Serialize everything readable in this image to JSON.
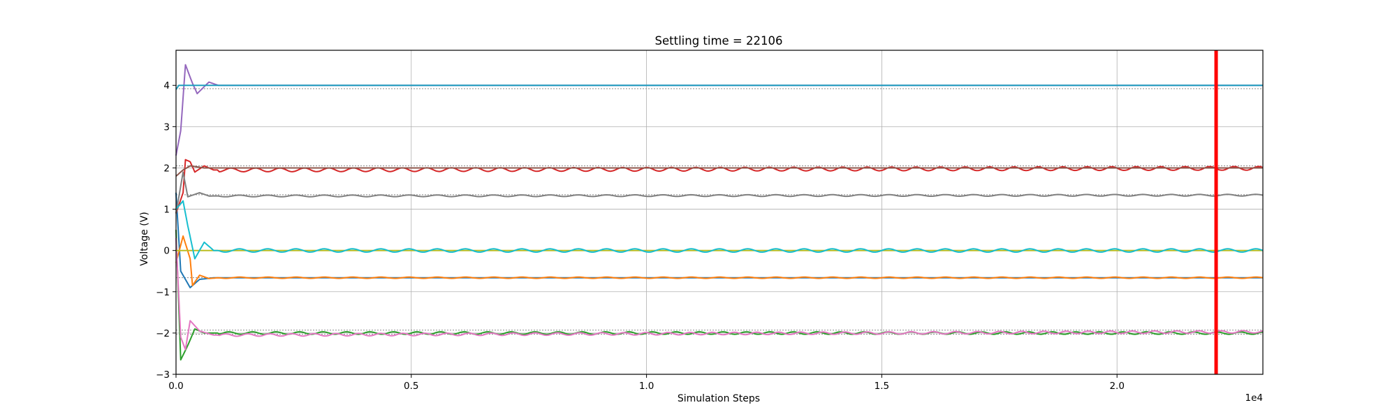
{
  "chart_data": {
    "type": "line",
    "title": "Settling time = 22106",
    "xlabel": "Simulation Steps",
    "ylabel": "Voltage (V)",
    "x_offset_label": "1e4",
    "xlim": [
      0,
      23100
    ],
    "ylim": [
      -3,
      4.85
    ],
    "x_ticks": [
      0,
      5000,
      10000,
      15000,
      20000
    ],
    "x_tick_labels": [
      "0.0",
      "0.5",
      "1.0",
      "1.5",
      "2.0"
    ],
    "y_ticks": [
      -3,
      -2,
      -1,
      0,
      1,
      2,
      3,
      4
    ],
    "y_tick_labels": [
      "−3",
      "−2",
      "−1",
      "0",
      "1",
      "2",
      "3",
      "4"
    ],
    "grid": true,
    "settling_marker": {
      "x": 22106,
      "color": "#ff0000"
    },
    "target_lines": [
      {
        "y": 3.92,
        "color": "#888888",
        "style": "dotted"
      },
      {
        "y": 2.05,
        "color": "#888888",
        "style": "dotted"
      },
      {
        "y": 1.35,
        "color": "#888888",
        "style": "dotted"
      },
      {
        "y": 0.0,
        "color": "#888888",
        "style": "dotted"
      },
      {
        "y": -0.66,
        "color": "#888888",
        "style": "dotted"
      },
      {
        "y": -1.93,
        "color": "#888888",
        "style": "dotted"
      },
      {
        "y": -2.03,
        "color": "#888888",
        "style": "dotted"
      }
    ],
    "series": [
      {
        "color": "#1f77b4",
        "points": [
          [
            0,
            1.4
          ],
          [
            100,
            -0.5
          ],
          [
            300,
            -0.9
          ],
          [
            500,
            -0.7
          ],
          [
            800,
            -0.66
          ],
          [
            23100,
            -0.66
          ]
        ],
        "osc_amp": 0.0,
        "osc_period": 1000
      },
      {
        "color": "#ff7f0e",
        "points": [
          [
            0,
            -0.3
          ],
          [
            150,
            0.35
          ],
          [
            300,
            -0.2
          ],
          [
            350,
            -0.85
          ],
          [
            500,
            -0.6
          ],
          [
            700,
            -0.68
          ],
          [
            900,
            -0.66
          ],
          [
            23100,
            -0.66
          ]
        ],
        "osc_amp": 0.015,
        "osc_period": 600
      },
      {
        "color": "#2ca02c",
        "points": [
          [
            0,
            0.5
          ],
          [
            100,
            -2.65
          ],
          [
            250,
            -2.3
          ],
          [
            400,
            -1.9
          ],
          [
            600,
            -2.0
          ],
          [
            1000,
            -2.0
          ],
          [
            23100,
            -2.0
          ]
        ],
        "osc_amp": 0.03,
        "osc_period": 500
      },
      {
        "color": "#d62728",
        "points": [
          [
            0,
            0.9
          ],
          [
            150,
            1.4
          ],
          [
            200,
            2.2
          ],
          [
            300,
            2.15
          ],
          [
            400,
            1.9
          ],
          [
            600,
            2.05
          ],
          [
            800,
            1.95
          ],
          [
            23100,
            1.99
          ]
        ],
        "osc_amp": 0.045,
        "osc_period": 520
      },
      {
        "color": "#9467bd",
        "points": [
          [
            0,
            2.3
          ],
          [
            100,
            2.9
          ],
          [
            200,
            4.5
          ],
          [
            350,
            4.05
          ],
          [
            450,
            3.8
          ],
          [
            700,
            4.08
          ],
          [
            900,
            4.0
          ],
          [
            23100,
            4.0
          ]
        ],
        "osc_amp": 0.0,
        "osc_period": 1000
      },
      {
        "color": "#8c564b",
        "points": [
          [
            0,
            1.8
          ],
          [
            150,
            1.95
          ],
          [
            300,
            2.05
          ],
          [
            600,
            2.0
          ],
          [
            23100,
            2.0
          ]
        ],
        "osc_amp": 0.0,
        "osc_period": 1000
      },
      {
        "color": "#e377c2",
        "points": [
          [
            0,
            0.3
          ],
          [
            100,
            -2.1
          ],
          [
            200,
            -2.4
          ],
          [
            300,
            -1.7
          ],
          [
            500,
            -1.95
          ],
          [
            800,
            -2.05
          ],
          [
            23100,
            -1.97
          ]
        ],
        "osc_amp": 0.03,
        "osc_period": 470
      },
      {
        "color": "#7f7f7f",
        "points": [
          [
            0,
            0.9
          ],
          [
            150,
            1.9
          ],
          [
            250,
            1.3
          ],
          [
            500,
            1.4
          ],
          [
            700,
            1.32
          ],
          [
            23100,
            1.34
          ]
        ],
        "osc_amp": 0.02,
        "osc_period": 600
      },
      {
        "color": "#bcbd22",
        "points": [
          [
            0,
            0.0
          ],
          [
            23100,
            0.0
          ]
        ],
        "osc_amp": 0.0,
        "osc_period": 1000
      },
      {
        "color": "#17becf",
        "points": [
          [
            0,
            1.0
          ],
          [
            150,
            1.2
          ],
          [
            250,
            0.6
          ],
          [
            400,
            -0.2
          ],
          [
            600,
            0.2
          ],
          [
            800,
            0.0
          ],
          [
            23100,
            0.0
          ]
        ],
        "osc_amp": 0.04,
        "osc_period": 600
      },
      {
        "color": "#1f9fbf",
        "points": [
          [
            0,
            3.9
          ],
          [
            60,
            4.0
          ],
          [
            23100,
            4.0
          ]
        ],
        "osc_amp": 0.0,
        "osc_period": 1000
      }
    ]
  }
}
